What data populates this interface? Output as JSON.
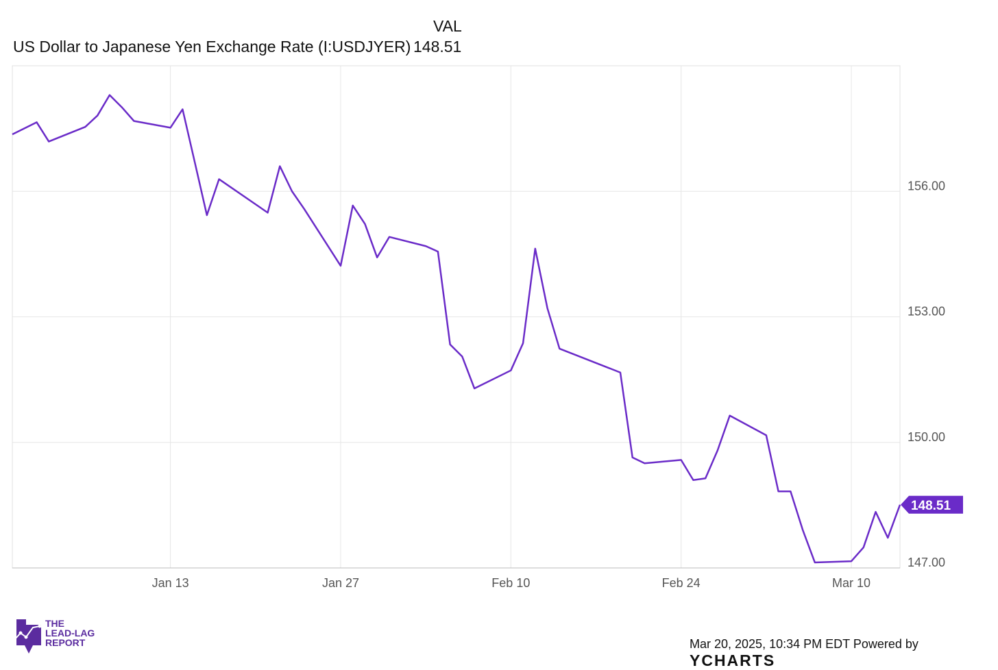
{
  "legend": {
    "name": "US Dollar to Japanese Yen Exchange Rate (I:USDJYER)",
    "column_header": "VAL",
    "value": "148.51"
  },
  "footer": {
    "timestamp": "Mar 20, 2025, 10:34 PM EDT",
    "powered_by": "Powered by",
    "brand": "YCHARTS"
  },
  "logo": {
    "text": "THE LEAD-LAG REPORT",
    "line1": "THE",
    "line2": "LEAD-LAG",
    "line3": "REPORT"
  },
  "colors": {
    "line": "#6a2bc8",
    "grid": "#e6e6e6",
    "brand_y": "#2b8fd8"
  },
  "chart_data": {
    "type": "line",
    "title": "US Dollar to Japanese Yen Exchange Rate (I:USDJYER)",
    "xlabel": "",
    "ylabel": "",
    "x_unit": "days since Jan 1, 2025",
    "xlim": [
      -1,
      72
    ],
    "ylim": [
      147,
      159
    ],
    "x_ticks": [
      {
        "x": 12,
        "label": "Jan 13"
      },
      {
        "x": 26,
        "label": "Jan 27"
      },
      {
        "x": 40,
        "label": "Feb 10"
      },
      {
        "x": 54,
        "label": "Feb 24"
      },
      {
        "x": 68,
        "label": "Mar 10"
      }
    ],
    "y_ticks": [
      {
        "y": 156,
        "label": "156.00"
      },
      {
        "y": 153,
        "label": "153.00"
      },
      {
        "y": 150,
        "label": "150.00"
      },
      {
        "y": 147,
        "label": "147.00"
      }
    ],
    "grid": true,
    "last_value_label": "148.51",
    "series": [
      {
        "name": "VAL",
        "x": [
          -1,
          1,
          2,
          5,
          6,
          7,
          8,
          9,
          12,
          13,
          14,
          15,
          16,
          20,
          21,
          22,
          23,
          26,
          27,
          28,
          29,
          30,
          33,
          34,
          35,
          36,
          37,
          40,
          41,
          42,
          43,
          44,
          49,
          50,
          51,
          54,
          55,
          56,
          57,
          58,
          61,
          62,
          63,
          64,
          65,
          68,
          69,
          70,
          71,
          72
        ],
        "y": [
          157.36,
          157.65,
          157.19,
          157.54,
          157.81,
          158.3,
          158.01,
          157.68,
          157.52,
          157.96,
          156.7,
          155.43,
          156.29,
          155.49,
          156.6,
          156.0,
          155.58,
          154.22,
          155.66,
          155.22,
          154.42,
          154.91,
          154.69,
          154.56,
          152.34,
          152.05,
          151.29,
          151.72,
          152.37,
          154.63,
          153.21,
          152.24,
          151.67,
          149.64,
          149.5,
          149.58,
          149.1,
          149.14,
          149.81,
          150.64,
          150.17,
          148.83,
          148.83,
          147.91,
          147.13,
          147.16,
          147.49,
          148.34,
          147.72,
          148.51
        ]
      }
    ]
  }
}
